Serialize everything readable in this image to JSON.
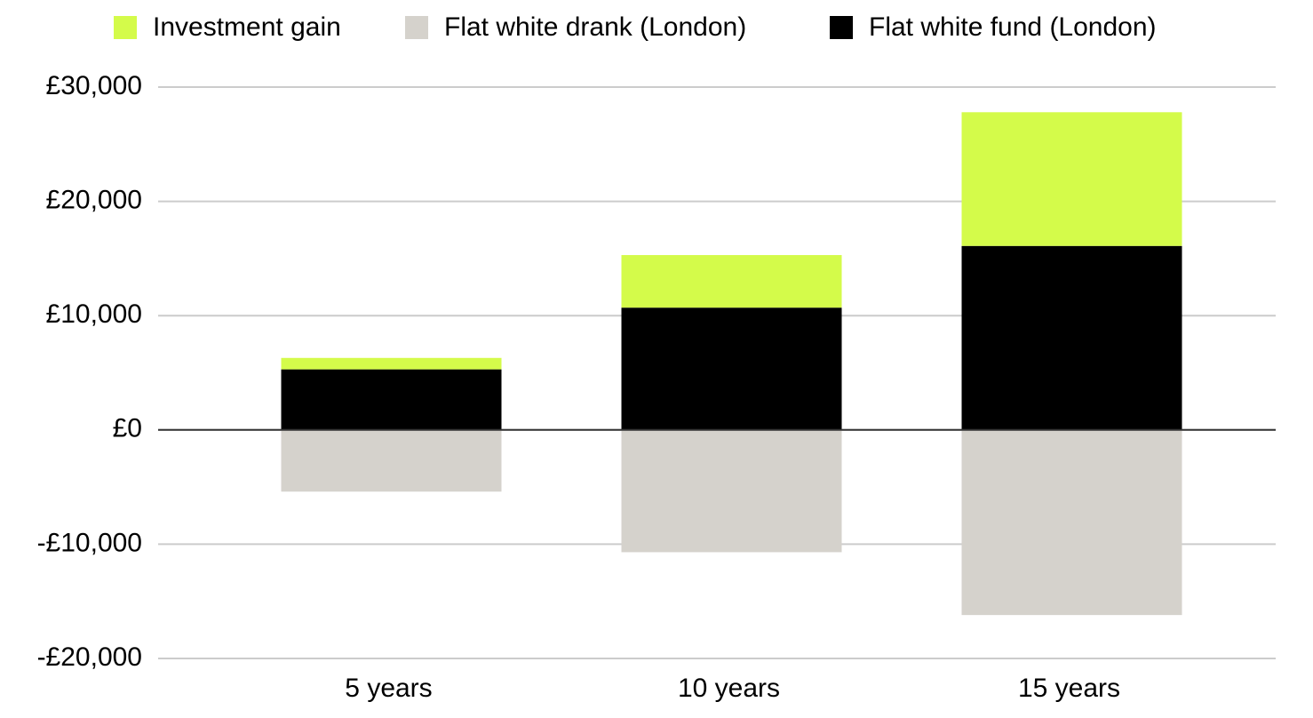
{
  "chart_data": {
    "type": "stacked_bar",
    "categories": [
      "5 years",
      "10 years",
      "15 years"
    ],
    "series": [
      {
        "name": "Investment gain",
        "color": "#d4fb4a",
        "values": [
          1000,
          4600,
          11700
        ]
      },
      {
        "name": "Flat white drank (London)",
        "color": "#d5d2cc",
        "values": [
          -5400,
          -10700,
          -16200
        ]
      },
      {
        "name": "Flat white fund (London)",
        "color": "#000000",
        "values": [
          5300,
          10700,
          16100
        ]
      }
    ],
    "ylim": [
      -20000,
      30000
    ],
    "yticks": [
      {
        "value": -20000,
        "label": "-£20,000"
      },
      {
        "value": -10000,
        "label": "-£10,000"
      },
      {
        "value": 0,
        "label": "£0"
      },
      {
        "value": 10000,
        "label": "£10,000"
      },
      {
        "value": 20000,
        "label": "£20,000"
      },
      {
        "value": 30000,
        "label": "£30,000"
      }
    ],
    "grid": true
  }
}
